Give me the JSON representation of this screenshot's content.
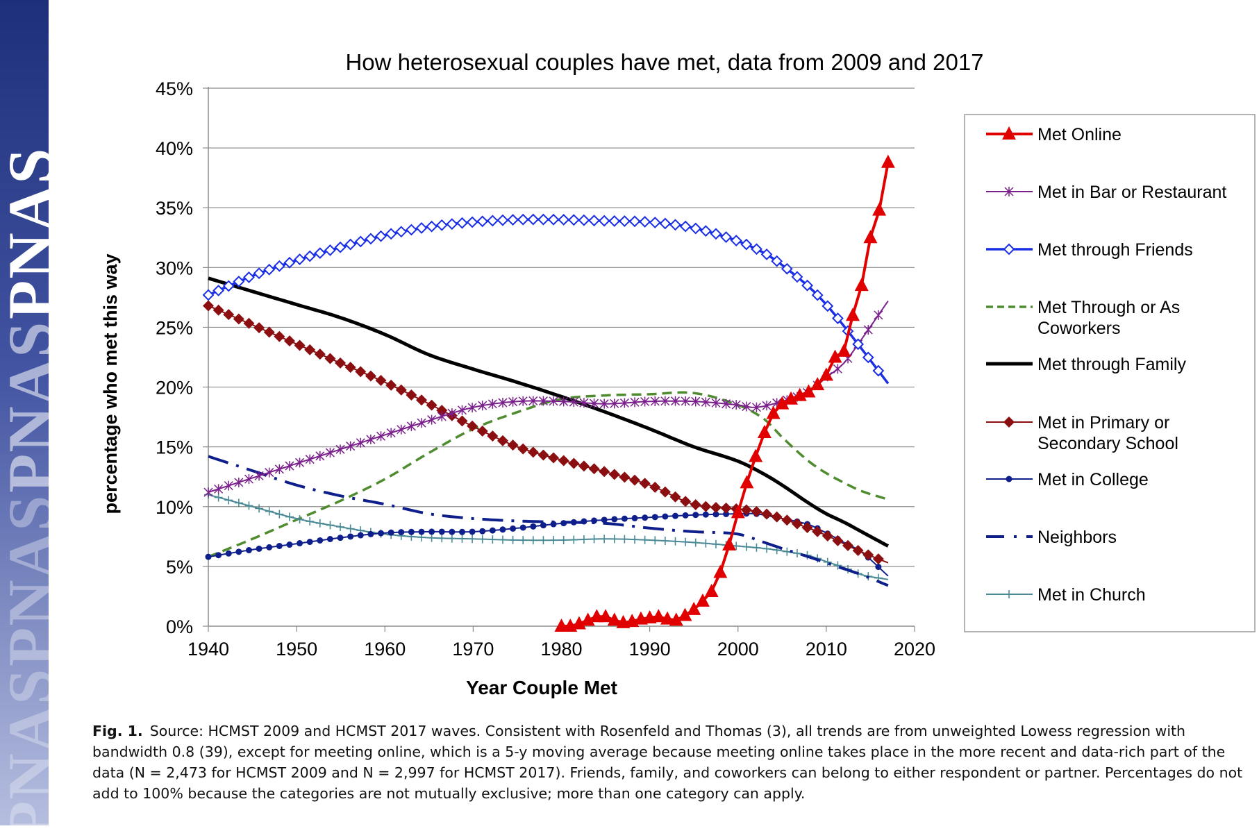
{
  "sidebar": {
    "logo_text": "PNAS"
  },
  "caption": {
    "label": "Fig. 1.",
    "text": "Source: HCMST 2009 and HCMST 2017 waves. Consistent with Rosenfeld and Thomas (3), all trends are from unweighted Lowess regression with bandwidth 0.8 (39), except for meeting online, which is a 5-y moving average because meeting online takes place in the more recent and data-rich part of the data (N = 2,473 for HCMST 2009 and N = 2,997 for HCMST 2017). Friends, family, and coworkers can belong to either respondent or partner. Percentages do not add to 100% because the categories are not mutually exclusive; more than one category can apply."
  },
  "chart_data": {
    "type": "line",
    "title": "How heterosexual couples have met, data from 2009 and 2017",
    "xlabel": "Year Couple Met",
    "ylabel": "percentage who met this way",
    "xlim": [
      1940,
      2020
    ],
    "ylim": [
      0,
      45
    ],
    "x_ticks": [
      "1940",
      "1950",
      "1960",
      "1970",
      "1980",
      "1990",
      "2000",
      "2010",
      "2020"
    ],
    "y_ticks": [
      "0%",
      "5%",
      "10%",
      "15%",
      "20%",
      "25%",
      "30%",
      "35%",
      "40%",
      "45%"
    ],
    "grid": "horizontal",
    "legend": "right",
    "series": [
      {
        "name": "Met Online",
        "color": "#e00000",
        "style": "solid",
        "marker": "triangle",
        "x": [
          1980,
          1981,
          1982,
          1983,
          1984,
          1985,
          1986,
          1987,
          1988,
          1989,
          1990,
          1991,
          1992,
          1993,
          1994,
          1995,
          1996,
          1997,
          1998,
          1999,
          2000,
          2001,
          2002,
          2003,
          2004,
          2005,
          2006,
          2007,
          2008,
          2009,
          2010,
          2011,
          2012,
          2013,
          2014,
          2015,
          2016,
          2017
        ],
        "y": [
          0,
          0,
          0.2,
          0.5,
          0.8,
          0.8,
          0.5,
          0.3,
          0.4,
          0.6,
          0.7,
          0.8,
          0.6,
          0.5,
          0.9,
          1.4,
          2.1,
          2.9,
          4.5,
          6.8,
          9.5,
          12,
          14.2,
          16.2,
          17.8,
          18.6,
          19.0,
          19.3,
          19.6,
          20.2,
          21.0,
          22.5,
          23.0,
          26.0,
          28.5,
          32.5,
          34.8,
          38.8
        ]
      },
      {
        "name": "Met in Bar or Restaurant",
        "color": "#7a1f8c",
        "style": "solid",
        "marker": "asterisk",
        "x": [
          1940,
          1945,
          1950,
          1955,
          1960,
          1965,
          1970,
          1975,
          1980,
          1985,
          1990,
          1995,
          2000,
          2002,
          2005,
          2008,
          2010,
          2012,
          2014,
          2017
        ],
        "y": [
          11.2,
          12.4,
          13.6,
          14.8,
          16.0,
          17.2,
          18.3,
          18.8,
          18.8,
          18.6,
          18.8,
          18.8,
          18.5,
          18.3,
          18.8,
          19.6,
          20.8,
          22.0,
          24.0,
          27.2
        ]
      },
      {
        "name": "Met through Friends",
        "color": "#1a2ee6",
        "style": "solid",
        "marker": "diamond-open",
        "x": [
          1940,
          1945,
          1950,
          1955,
          1960,
          1965,
          1970,
          1975,
          1980,
          1985,
          1990,
          1995,
          2000,
          2003,
          2005,
          2008,
          2010,
          2012,
          2014,
          2017
        ],
        "y": [
          27.7,
          29.3,
          30.6,
          31.7,
          32.7,
          33.4,
          33.8,
          34.0,
          34.0,
          33.9,
          33.8,
          33.3,
          32.2,
          31.2,
          30.2,
          28.4,
          26.9,
          25.1,
          23.2,
          20.3
        ]
      },
      {
        "name": "Met Through or As Coworkers",
        "color": "#4f8c2f",
        "style": "dashed",
        "marker": "none",
        "x": [
          1940,
          1945,
          1950,
          1955,
          1960,
          1965,
          1970,
          1975,
          1980,
          1985,
          1990,
          1995,
          2000,
          2003,
          2005,
          2008,
          2010,
          2012,
          2014,
          2017
        ],
        "y": [
          5.8,
          7.3,
          8.9,
          10.5,
          12.3,
          14.5,
          16.5,
          17.9,
          19.0,
          19.3,
          19.4,
          19.5,
          18.5,
          17.3,
          15.8,
          13.8,
          12.8,
          12.0,
          11.3,
          10.6
        ]
      },
      {
        "name": "Met through Family",
        "color": "#000000",
        "style": "solid",
        "marker": "none",
        "x": [
          1940,
          1945,
          1950,
          1955,
          1960,
          1965,
          1970,
          1975,
          1980,
          1985,
          1990,
          1995,
          2000,
          2003,
          2005,
          2008,
          2010,
          2012,
          2014,
          2017
        ],
        "y": [
          29.1,
          28.0,
          26.9,
          25.8,
          24.4,
          22.7,
          21.5,
          20.4,
          19.2,
          17.9,
          16.5,
          15.0,
          13.8,
          12.7,
          11.8,
          10.3,
          9.4,
          8.7,
          7.9,
          6.7
        ]
      },
      {
        "name": "Met in Primary or Secondary School",
        "color": "#8b0e10",
        "style": "solid",
        "marker": "diamond",
        "x": [
          1940,
          1945,
          1950,
          1955,
          1960,
          1965,
          1970,
          1975,
          1980,
          1985,
          1990,
          1995,
          2000,
          2002,
          2005,
          2008,
          2010,
          2012,
          2014,
          2017
        ],
        "y": [
          26.8,
          25.2,
          23.6,
          22.0,
          20.4,
          18.6,
          16.7,
          15.0,
          13.9,
          12.9,
          11.8,
          10.2,
          9.8,
          9.6,
          9.0,
          8.2,
          7.6,
          6.9,
          6.2,
          5.3
        ]
      },
      {
        "name": "Met in College",
        "color": "#0e1f8c",
        "style": "solid",
        "marker": "dot",
        "x": [
          1940,
          1945,
          1950,
          1955,
          1960,
          1965,
          1970,
          1975,
          1980,
          1985,
          1990,
          1995,
          2000,
          2002,
          2005,
          2008,
          2010,
          2012,
          2014,
          2017
        ],
        "y": [
          5.8,
          6.4,
          6.9,
          7.4,
          7.8,
          7.9,
          7.9,
          8.2,
          8.6,
          8.9,
          9.1,
          9.3,
          9.4,
          9.4,
          9.0,
          8.5,
          7.8,
          7.0,
          6.2,
          4.2
        ]
      },
      {
        "name": "Neighbors",
        "color": "#0e1f8c",
        "style": "dashdot",
        "marker": "none",
        "x": [
          1940,
          1945,
          1950,
          1955,
          1960,
          1965,
          1970,
          1975,
          1980,
          1985,
          1990,
          1995,
          2000,
          2003,
          2005,
          2008,
          2010,
          2012,
          2014,
          2017
        ],
        "y": [
          14.2,
          13.0,
          11.8,
          10.9,
          10.2,
          9.4,
          9.0,
          8.8,
          8.7,
          8.6,
          8.2,
          7.9,
          7.7,
          7.0,
          6.5,
          5.8,
          5.3,
          4.8,
          4.3,
          3.4
        ]
      },
      {
        "name": "Met in Church",
        "color": "#4a8a95",
        "style": "solid",
        "marker": "plus",
        "x": [
          1940,
          1945,
          1950,
          1955,
          1960,
          1965,
          1970,
          1975,
          1980,
          1985,
          1990,
          1995,
          2000,
          2003,
          2005,
          2008,
          2010,
          2012,
          2014,
          2017
        ],
        "y": [
          11.0,
          10.0,
          9.0,
          8.3,
          7.7,
          7.4,
          7.3,
          7.2,
          7.2,
          7.3,
          7.2,
          7.0,
          6.7,
          6.5,
          6.3,
          5.9,
          5.4,
          4.9,
          4.3,
          3.9
        ]
      }
    ]
  }
}
